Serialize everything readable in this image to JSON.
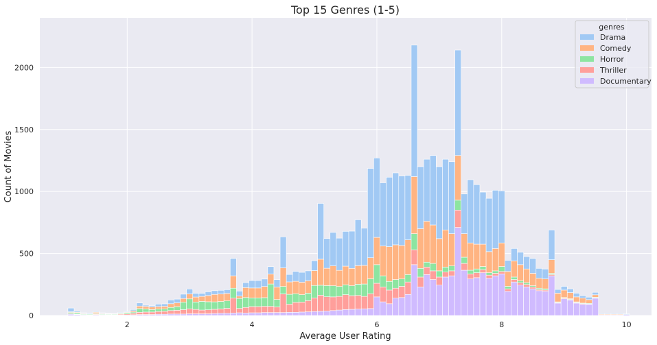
{
  "chart_data": {
    "type": "bar",
    "stacked": true,
    "title": "Top 15 Genres (1-5)",
    "xlabel": "Average User Rating",
    "ylabel": "Count of Movies",
    "xlim": [
      0.6,
      10.4
    ],
    "ylim": [
      0,
      2400
    ],
    "xticks": [
      "2",
      "4",
      "6",
      "8",
      "10"
    ],
    "yticks": [
      "0",
      "500",
      "1000",
      "1500",
      "2000"
    ],
    "grid": true,
    "legend_title": "genres",
    "legend_position": "top-right",
    "bin_width": 0.1,
    "x": [
      1.1,
      1.2,
      1.3,
      1.4,
      1.5,
      1.6,
      1.7,
      1.8,
      1.9,
      2.0,
      2.1,
      2.2,
      2.3,
      2.4,
      2.5,
      2.6,
      2.7,
      2.8,
      2.9,
      3.0,
      3.1,
      3.2,
      3.3,
      3.4,
      3.5,
      3.6,
      3.7,
      3.8,
      3.9,
      4.0,
      4.1,
      4.2,
      4.3,
      4.4,
      4.5,
      4.6,
      4.7,
      4.8,
      4.9,
      5.0,
      5.1,
      5.2,
      5.3,
      5.4,
      5.5,
      5.6,
      5.7,
      5.8,
      5.9,
      6.0,
      6.1,
      6.2,
      6.3,
      6.4,
      6.5,
      6.6,
      6.7,
      6.8,
      6.9,
      7.0,
      7.1,
      7.2,
      7.3,
      7.4,
      7.5,
      7.6,
      7.7,
      7.8,
      7.9,
      8.0,
      8.1,
      8.2,
      8.3,
      8.4,
      8.5,
      8.6,
      8.7,
      8.8,
      8.9,
      9.0,
      9.1,
      9.2,
      9.3,
      9.4,
      9.5,
      9.6,
      9.7,
      9.8,
      9.9,
      10.0
    ],
    "series": [
      {
        "name": "Documentary",
        "color": "#d0bbff",
        "values": [
          10,
          8,
          5,
          3,
          6,
          4,
          3,
          2,
          4,
          5,
          6,
          8,
          8,
          8,
          10,
          10,
          12,
          12,
          12,
          14,
          14,
          14,
          14,
          16,
          18,
          18,
          20,
          22,
          20,
          22,
          22,
          24,
          24,
          24,
          24,
          26,
          26,
          28,
          30,
          32,
          34,
          36,
          40,
          44,
          48,
          50,
          52,
          54,
          56,
          150,
          110,
          95,
          140,
          145,
          170,
          410,
          230,
          330,
          290,
          245,
          310,
          320,
          710,
          365,
          295,
          305,
          345,
          300,
          320,
          335,
          195,
          270,
          245,
          230,
          215,
          200,
          195,
          320,
          100,
          135,
          125,
          100,
          90,
          90,
          140,
          5,
          5,
          5,
          5,
          8
        ]
      },
      {
        "name": "Thriller",
        "color": "#ff9f9b",
        "values": [
          5,
          3,
          2,
          2,
          5,
          3,
          3,
          2,
          6,
          8,
          12,
          18,
          20,
          20,
          22,
          24,
          28,
          30,
          35,
          40,
          35,
          30,
          32,
          34,
          35,
          40,
          120,
          35,
          45,
          50,
          50,
          50,
          50,
          45,
          150,
          65,
          80,
          80,
          90,
          110,
          130,
          115,
          110,
          110,
          120,
          110,
          110,
          100,
          120,
          110,
          120,
          110,
          80,
          90,
          100,
          120,
          80,
          60,
          70,
          65,
          40,
          40,
          140,
          55,
          40,
          40,
          25,
          25,
          20,
          20,
          20,
          20,
          20,
          20,
          15,
          10,
          10,
          10,
          5,
          5,
          5,
          5,
          5,
          3,
          2,
          0,
          0,
          0,
          0,
          0
        ]
      },
      {
        "name": "Horror",
        "color": "#8de5a1",
        "values": [
          10,
          10,
          5,
          5,
          5,
          5,
          5,
          5,
          5,
          10,
          10,
          30,
          25,
          20,
          20,
          20,
          25,
          30,
          60,
          80,
          60,
          70,
          65,
          60,
          60,
          60,
          80,
          80,
          80,
          70,
          70,
          70,
          180,
          60,
          60,
          80,
          70,
          60,
          60,
          100,
          80,
          90,
          90,
          80,
          80,
          80,
          90,
          100,
          120,
          150,
          90,
          70,
          70,
          60,
          60,
          130,
          70,
          40,
          60,
          50,
          40,
          40,
          80,
          50,
          30,
          30,
          25,
          20,
          20,
          40,
          20,
          20,
          15,
          15,
          10,
          10,
          10,
          10,
          5,
          5,
          5,
          5,
          5,
          5,
          5,
          0,
          0,
          0,
          0,
          0
        ]
      },
      {
        "name": "Comedy",
        "color": "#ffb482",
        "values": [
          5,
          5,
          5,
          3,
          10,
          5,
          3,
          3,
          5,
          5,
          10,
          20,
          20,
          20,
          20,
          20,
          30,
          30,
          30,
          40,
          40,
          40,
          50,
          60,
          60,
          60,
          100,
          20,
          80,
          80,
          80,
          90,
          80,
          100,
          150,
          100,
          100,
          100,
          100,
          120,
          210,
          140,
          160,
          130,
          150,
          140,
          150,
          150,
          170,
          220,
          240,
          280,
          280,
          270,
          280,
          460,
          320,
          330,
          310,
          260,
          300,
          260,
          360,
          190,
          220,
          200,
          180,
          170,
          180,
          190,
          120,
          130,
          130,
          110,
          100,
          80,
          80,
          110,
          70,
          60,
          50,
          40,
          40,
          30,
          20,
          5,
          5,
          5,
          5,
          0
        ]
      },
      {
        "name": "Drama",
        "color": "#a1c9f4",
        "values": [
          30,
          8,
          5,
          5,
          5,
          5,
          3,
          3,
          5,
          5,
          10,
          25,
          10,
          10,
          20,
          20,
          30,
          30,
          35,
          40,
          30,
          25,
          30,
          30,
          30,
          30,
          140,
          40,
          40,
          60,
          60,
          60,
          60,
          60,
          250,
          60,
          80,
          80,
          80,
          80,
          450,
          240,
          270,
          260,
          280,
          300,
          370,
          300,
          720,
          640,
          510,
          560,
          580,
          560,
          520,
          1060,
          500,
          500,
          560,
          580,
          570,
          580,
          850,
          320,
          510,
          480,
          420,
          430,
          470,
          420,
          90,
          100,
          100,
          100,
          120,
          80,
          80,
          240,
          30,
          30,
          30,
          30,
          20,
          20,
          20,
          5,
          5,
          5,
          5,
          5
        ]
      }
    ],
    "legend_order": [
      "Drama",
      "Comedy",
      "Horror",
      "Thriller",
      "Documentary"
    ]
  }
}
